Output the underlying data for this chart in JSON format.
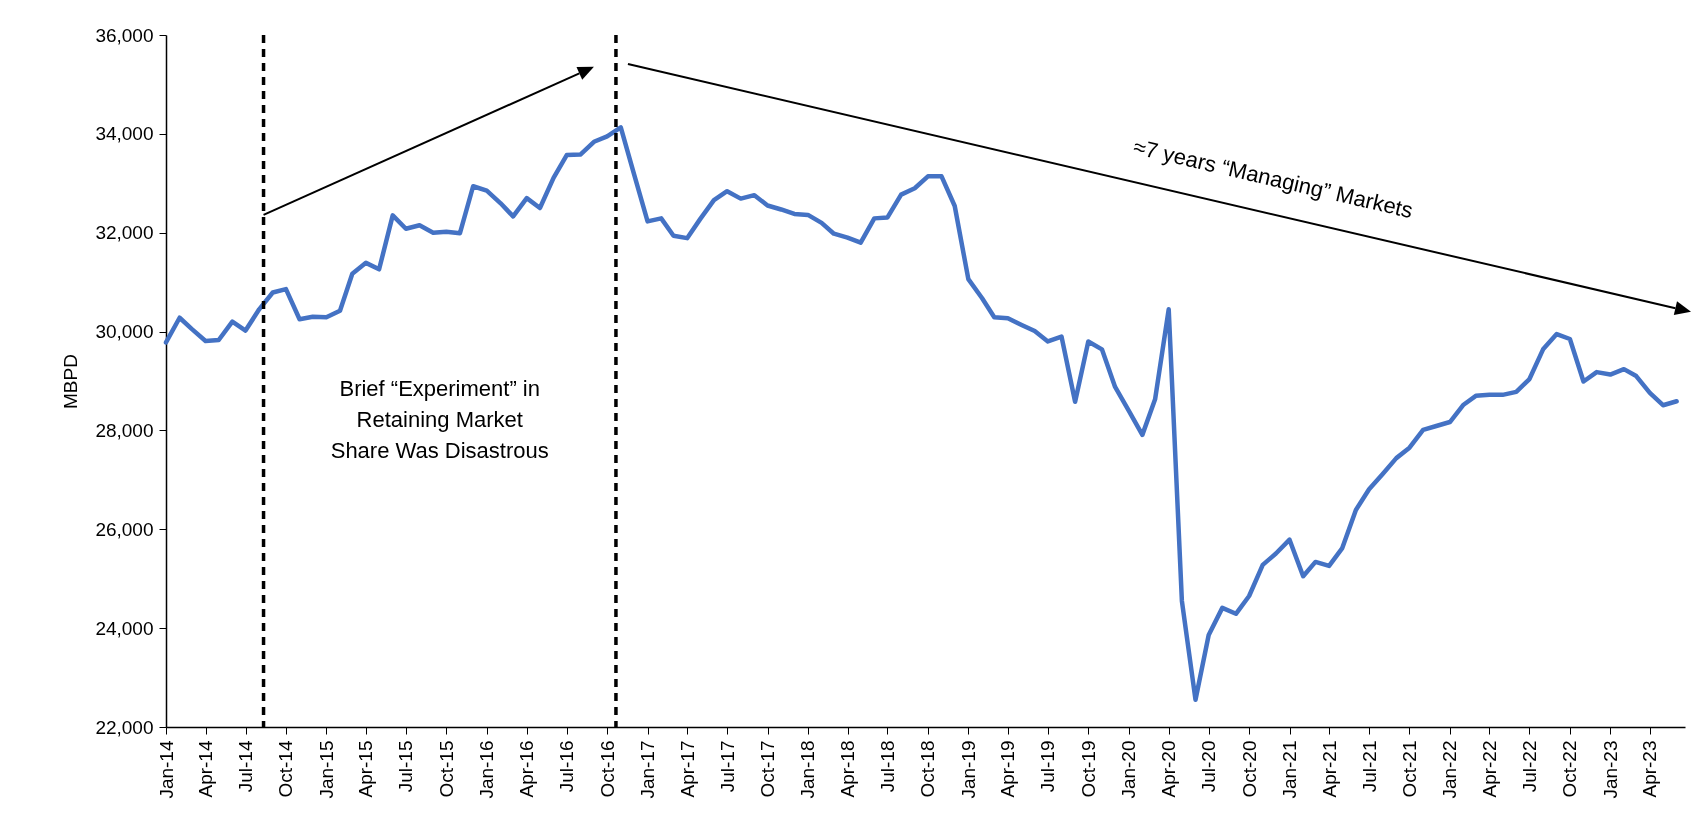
{
  "chart_data": {
    "type": "line",
    "ylabel": "MBPD",
    "x": [
      "2014-01",
      "2014-02",
      "2014-03",
      "2014-04",
      "2014-05",
      "2014-06",
      "2014-07",
      "2014-08",
      "2014-09",
      "2014-10",
      "2014-11",
      "2014-12",
      "2015-01",
      "2015-02",
      "2015-03",
      "2015-04",
      "2015-05",
      "2015-06",
      "2015-07",
      "2015-08",
      "2015-09",
      "2015-10",
      "2015-11",
      "2015-12",
      "2016-01",
      "2016-02",
      "2016-03",
      "2016-04",
      "2016-05",
      "2016-06",
      "2016-07",
      "2016-08",
      "2016-09",
      "2016-10",
      "2016-11",
      "2016-12",
      "2017-01",
      "2017-02",
      "2017-03",
      "2017-04",
      "2017-05",
      "2017-06",
      "2017-07",
      "2017-08",
      "2017-09",
      "2017-10",
      "2017-11",
      "2017-12",
      "2018-01",
      "2018-02",
      "2018-03",
      "2018-04",
      "2018-05",
      "2018-06",
      "2018-07",
      "2018-08",
      "2018-09",
      "2018-10",
      "2018-11",
      "2018-12",
      "2019-01",
      "2019-02",
      "2019-03",
      "2019-04",
      "2019-05",
      "2019-06",
      "2019-07",
      "2019-08",
      "2019-09",
      "2019-10",
      "2019-11",
      "2019-12",
      "2020-01",
      "2020-02",
      "2020-03",
      "2020-04",
      "2020-05",
      "2020-06",
      "2020-07",
      "2020-08",
      "2020-09",
      "2020-10",
      "2020-11",
      "2020-12",
      "2021-01",
      "2021-02",
      "2021-03",
      "2021-04",
      "2021-05",
      "2021-06",
      "2021-07",
      "2021-08",
      "2021-09",
      "2021-10",
      "2021-11",
      "2021-12",
      "2022-01",
      "2022-02",
      "2022-03",
      "2022-04",
      "2022-05",
      "2022-06",
      "2022-07",
      "2022-08",
      "2022-09",
      "2022-10",
      "2022-11",
      "2022-12",
      "2023-01",
      "2023-02",
      "2023-03",
      "2023-04",
      "2023-05",
      "2023-06"
    ],
    "series": [
      {
        "color": "#4472c4",
        "values": [
          29780,
          30280,
          30050,
          29810,
          29830,
          30200,
          30020,
          30450,
          30790,
          30860,
          30250,
          30300,
          30290,
          30420,
          31170,
          31390,
          31260,
          32350,
          32080,
          32150,
          32000,
          32020,
          31990,
          32940,
          32850,
          32600,
          32330,
          32700,
          32500,
          33110,
          33570,
          33580,
          33840,
          33950,
          34130,
          33190,
          32230,
          32290,
          31940,
          31890,
          32280,
          32660,
          32840,
          32690,
          32760,
          32550,
          32470,
          32380,
          32360,
          32200,
          31980,
          31900,
          31800,
          32290,
          32310,
          32770,
          32900,
          33140,
          33140,
          32540,
          31060,
          30680,
          30290,
          30270,
          30140,
          30010,
          29800,
          29900,
          28580,
          29800,
          29640,
          28880,
          28400,
          27910,
          28630,
          30450,
          24550,
          22550,
          23860,
          24410,
          24290,
          24650,
          25280,
          25510,
          25790,
          25050,
          25340,
          25260,
          25620,
          26390,
          26810,
          27120,
          27440,
          27650,
          28010,
          28090,
          28170,
          28520,
          28700,
          28720,
          28720,
          28780,
          29040,
          29640,
          29950,
          29850,
          28990,
          29180,
          29130,
          29240,
          29100,
          28760,
          28510,
          28590
        ]
      }
    ],
    "xlim": [
      "2014-01",
      "2023-06-20"
    ],
    "xticks": [
      {
        "value": "2014-01",
        "label": "Jan-14"
      },
      {
        "value": "2014-04",
        "label": "Apr-14"
      },
      {
        "value": "2014-07",
        "label": "Jul-14"
      },
      {
        "value": "2014-10",
        "label": "Oct-14"
      },
      {
        "value": "2015-01",
        "label": "Jan-15"
      },
      {
        "value": "2015-04",
        "label": "Apr-15"
      },
      {
        "value": "2015-07",
        "label": "Jul-15"
      },
      {
        "value": "2015-10",
        "label": "Oct-15"
      },
      {
        "value": "2016-01",
        "label": "Jan-16"
      },
      {
        "value": "2016-04",
        "label": "Apr-16"
      },
      {
        "value": "2016-07",
        "label": "Jul-16"
      },
      {
        "value": "2016-10",
        "label": "Oct-16"
      },
      {
        "value": "2017-01",
        "label": "Jan-17"
      },
      {
        "value": "2017-04",
        "label": "Apr-17"
      },
      {
        "value": "2017-07",
        "label": "Jul-17"
      },
      {
        "value": "2017-10",
        "label": "Oct-17"
      },
      {
        "value": "2018-01",
        "label": "Jan-18"
      },
      {
        "value": "2018-04",
        "label": "Apr-18"
      },
      {
        "value": "2018-07",
        "label": "Jul-18"
      },
      {
        "value": "2018-10",
        "label": "Oct-18"
      },
      {
        "value": "2019-01",
        "label": "Jan-19"
      },
      {
        "value": "2019-04",
        "label": "Apr-19"
      },
      {
        "value": "2019-07",
        "label": "Jul-19"
      },
      {
        "value": "2019-10",
        "label": "Oct-19"
      },
      {
        "value": "2020-01",
        "label": "Jan-20"
      },
      {
        "value": "2020-04",
        "label": "Apr-20"
      },
      {
        "value": "2020-07",
        "label": "Jul-20"
      },
      {
        "value": "2020-10",
        "label": "Oct-20"
      },
      {
        "value": "2021-01",
        "label": "Jan-21"
      },
      {
        "value": "2021-04",
        "label": "Apr-21"
      },
      {
        "value": "2021-07",
        "label": "Jul-21"
      },
      {
        "value": "2021-10",
        "label": "Oct-21"
      },
      {
        "value": "2022-01",
        "label": "Jan-22"
      },
      {
        "value": "2022-04",
        "label": "Apr-22"
      },
      {
        "value": "2022-07",
        "label": "Jul-22"
      },
      {
        "value": "2022-10",
        "label": "Oct-22"
      },
      {
        "value": "2023-01",
        "label": "Jan-23"
      },
      {
        "value": "2023-04",
        "label": "Apr-23"
      }
    ],
    "ylim": [
      22000,
      36000
    ],
    "yticks": [
      {
        "value": 22000,
        "label": "22,000"
      },
      {
        "value": 24000,
        "label": "24,000"
      },
      {
        "value": 26000,
        "label": "26,000"
      },
      {
        "value": 28000,
        "label": "28,000"
      },
      {
        "value": 30000,
        "label": "30,000"
      },
      {
        "value": 32000,
        "label": "32,000"
      },
      {
        "value": 34000,
        "label": "34,000"
      },
      {
        "value": 36000,
        "label": "36,000"
      }
    ],
    "ref_lines": [
      {
        "axis": "x",
        "value": "2014-08-11",
        "label": null,
        "color": "#000000",
        "line_style": "dashed"
      },
      {
        "axis": "x",
        "value": "2016-10-21",
        "label": null,
        "color": "#000000",
        "line_style": "dashed"
      }
    ],
    "annotations": [
      "Brief “Experiment” in Retaining Market Share Was Disastrous",
      "≈7 years “Managing” Markets"
    ]
  }
}
